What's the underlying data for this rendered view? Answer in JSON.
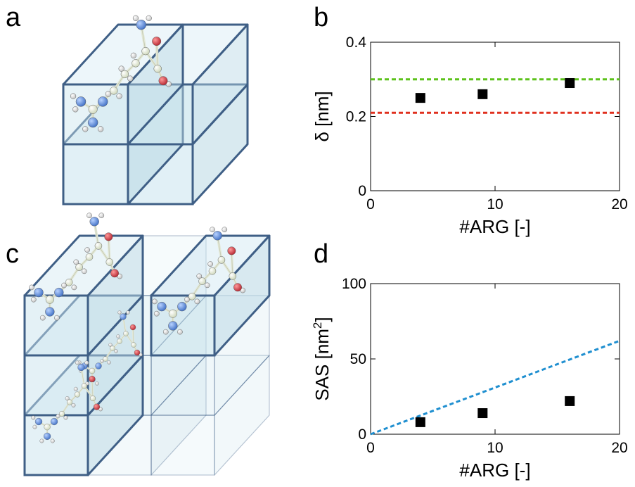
{
  "panels": {
    "a": "a",
    "b": "b",
    "c": "c",
    "d": "d"
  },
  "colors": {
    "box_edge": "#3f5f86",
    "box_fill": "#c9e4ee",
    "carbon": "#e8eedb",
    "nitrogen": "#5c8fe0",
    "oxygen": "#d8404a",
    "hydrogen": "#f2f2f2",
    "green_line": "#5cc21a",
    "red_line": "#e0301e",
    "blue_line": "#1f8fd0"
  },
  "chart_data": [
    {
      "type": "scatter",
      "panel": "b",
      "xlabel": "#ARG [-]",
      "ylabel": "δ [nm]",
      "xlim": [
        0,
        20
      ],
      "ylim": [
        0,
        0.4
      ],
      "xticks": [
        "0",
        "10",
        "20"
      ],
      "yticks": [
        "0",
        "0.2",
        "0.4"
      ],
      "series": [
        {
          "kind": "points",
          "x": [
            4,
            9,
            16
          ],
          "y": [
            0.25,
            0.26,
            0.29
          ]
        },
        {
          "kind": "hline",
          "y": 0.3,
          "color": "#5cc21a"
        },
        {
          "kind": "hline",
          "y": 0.21,
          "color": "#e0301e"
        }
      ],
      "grid": false
    },
    {
      "type": "scatter",
      "panel": "d",
      "xlabel": "#ARG [-]",
      "ylabel": "SAS [nm",
      "ylabel_sup": "2",
      "ylabel_end": "]",
      "xlim": [
        0,
        20
      ],
      "ylim": [
        0,
        100
      ],
      "xticks": [
        "0",
        "10",
        "20"
      ],
      "yticks": [
        "0",
        "50",
        "100"
      ],
      "series": [
        {
          "kind": "points",
          "x": [
            4,
            9,
            16
          ],
          "y": [
            8,
            14,
            22
          ]
        },
        {
          "kind": "line",
          "x": [
            0,
            20
          ],
          "y": [
            0,
            62
          ],
          "color": "#1f8fd0"
        }
      ],
      "grid": false
    }
  ]
}
